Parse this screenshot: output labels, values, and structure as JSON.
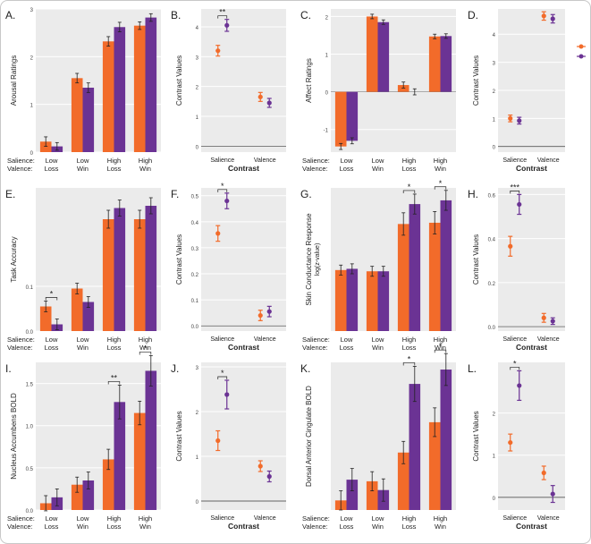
{
  "figure": {
    "orange": "#F26B2A",
    "purple": "#6B3394",
    "panel_bg": "#EBEBEB",
    "grid": "#FFFFFF",
    "common_labels": {
      "salience_label": "Salience:",
      "valence_label": "Valence:",
      "contrast_xlabel": "Contrast"
    }
  },
  "chart_data": [
    {
      "id": "A",
      "label": "A.",
      "type": "bar",
      "ylabel": "Arousal Ratings",
      "ylim": [
        0,
        3
      ],
      "yticks": [
        0,
        1,
        2,
        3
      ],
      "categories": [
        [
          "Low",
          "Loss"
        ],
        [
          "Low",
          "Win"
        ],
        [
          "High",
          "Loss"
        ],
        [
          "High",
          "Win"
        ]
      ],
      "series": [
        {
          "name": "orange",
          "values": [
            0.22,
            1.55,
            2.32,
            2.65
          ],
          "errors": [
            0.1,
            0.1,
            0.1,
            0.08
          ]
        },
        {
          "name": "purple",
          "values": [
            0.12,
            1.35,
            2.62,
            2.82
          ],
          "errors": [
            0.08,
            0.1,
            0.1,
            0.08
          ]
        }
      ],
      "sig": []
    },
    {
      "id": "B",
      "label": "B.",
      "type": "scatter",
      "ylabel": "Contrast Values",
      "xlabel": "Contrast",
      "ylim": [
        -0.2,
        4.6
      ],
      "yticks": [
        0,
        1,
        2,
        3,
        4
      ],
      "categories": [
        "Salience",
        "Valence"
      ],
      "series": [
        {
          "name": "orange",
          "values": [
            3.2,
            1.65
          ],
          "errors": [
            0.18,
            0.15
          ]
        },
        {
          "name": "purple",
          "values": [
            4.05,
            1.45
          ],
          "errors": [
            0.2,
            0.15
          ]
        }
      ],
      "sig": [
        {
          "group": 0,
          "text": "**"
        }
      ]
    },
    {
      "id": "C",
      "label": "C.",
      "type": "bar",
      "ylabel": "Affect Ratings",
      "ylim": [
        -1.6,
        2.2
      ],
      "yticks": [
        -1,
        0,
        1,
        2
      ],
      "categories": [
        [
          "Low",
          "Loss"
        ],
        [
          "Low",
          "Win"
        ],
        [
          "High",
          "Loss"
        ],
        [
          "High",
          "Win"
        ]
      ],
      "series": [
        {
          "name": "orange",
          "values": [
            -1.45,
            2.0,
            0.18,
            1.47
          ],
          "errors": [
            0.08,
            0.06,
            0.08,
            0.06
          ]
        },
        {
          "name": "purple",
          "values": [
            -1.3,
            1.85,
            0.0,
            1.48
          ],
          "errors": [
            0.08,
            0.06,
            0.08,
            0.06
          ]
        }
      ],
      "sig": []
    },
    {
      "id": "D",
      "label": "D.",
      "type": "scatter",
      "ylabel": "Contrast Values",
      "xlabel": "Contrast",
      "ylim": [
        -0.2,
        4.9
      ],
      "yticks": [
        0,
        1,
        2,
        3,
        4
      ],
      "categories": [
        "Salience",
        "Valence"
      ],
      "series": [
        {
          "name": "orange",
          "values": [
            1.0,
            4.65
          ],
          "errors": [
            0.12,
            0.15
          ]
        },
        {
          "name": "purple",
          "values": [
            0.92,
            4.55
          ],
          "errors": [
            0.12,
            0.15
          ]
        }
      ],
      "sig": []
    },
    {
      "id": "E",
      "label": "E.",
      "type": "bar",
      "ylabel": "Task Accuracy",
      "ylim": [
        0,
        0.32
      ],
      "yticks": [
        0,
        0.1
      ],
      "ytickLabels": [
        "0.0",
        "0.1"
      ],
      "categories": [
        [
          "Low",
          "Loss"
        ],
        [
          "Low",
          "Win"
        ],
        [
          "High",
          "Loss"
        ],
        [
          "High",
          "Win"
        ]
      ],
      "series": [
        {
          "name": "orange",
          "values": [
            0.055,
            0.095,
            0.25,
            0.25
          ],
          "errors": [
            0.012,
            0.012,
            0.02,
            0.02
          ]
        },
        {
          "name": "purple",
          "values": [
            0.015,
            0.065,
            0.275,
            0.28
          ],
          "errors": [
            0.012,
            0.012,
            0.018,
            0.018
          ]
        }
      ],
      "sig": [
        {
          "group": 0,
          "text": "*"
        }
      ]
    },
    {
      "id": "F",
      "label": "F.",
      "type": "scatter",
      "ylabel": "Contrast Values",
      "xlabel": "Contrast",
      "ylim": [
        -0.02,
        0.53
      ],
      "yticks": [
        0,
        0.1,
        0.2,
        0.3,
        0.4,
        0.5
      ],
      "ytickLabels": [
        "0.0",
        "0.1",
        "0.2",
        "0.3",
        "0.4",
        "0.5"
      ],
      "categories": [
        "Salience",
        "Valence"
      ],
      "series": [
        {
          "name": "orange",
          "values": [
            0.355,
            0.04
          ],
          "errors": [
            0.03,
            0.02
          ]
        },
        {
          "name": "purple",
          "values": [
            0.48,
            0.055
          ],
          "errors": [
            0.03,
            0.02
          ]
        }
      ],
      "sig": [
        {
          "group": 0,
          "text": "*"
        }
      ]
    },
    {
      "id": "G",
      "label": "G.",
      "type": "bar",
      "ylabel": "Skin Conductance Response",
      "ylabel2": "log(z-value)",
      "ylim": [
        0,
        1.15
      ],
      "yticks": [],
      "categories": [
        [
          "Low",
          "Loss"
        ],
        [
          "Low",
          "Win"
        ],
        [
          "High",
          "Loss"
        ],
        [
          "High",
          "Win"
        ]
      ],
      "series": [
        {
          "name": "orange",
          "values": [
            0.49,
            0.48,
            0.86,
            0.87
          ],
          "errors": [
            0.04,
            0.04,
            0.09,
            0.09
          ]
        },
        {
          "name": "purple",
          "values": [
            0.5,
            0.48,
            1.02,
            1.05
          ],
          "errors": [
            0.04,
            0.04,
            0.08,
            0.08
          ]
        }
      ],
      "sig": [
        {
          "group": 2,
          "text": "*"
        },
        {
          "group": 3,
          "text": "*"
        }
      ]
    },
    {
      "id": "H",
      "label": "H.",
      "type": "scatter",
      "ylabel": "Contrast Values",
      "xlabel": "Contrast",
      "ylim": [
        -0.02,
        0.63
      ],
      "yticks": [
        0,
        0.2,
        0.4,
        0.6
      ],
      "ytickLabels": [
        "0.0",
        "0.2",
        "0.4",
        "0.6"
      ],
      "categories": [
        "Salience",
        "Valence"
      ],
      "series": [
        {
          "name": "orange",
          "values": [
            0.365,
            0.04
          ],
          "errors": [
            0.045,
            0.02
          ]
        },
        {
          "name": "purple",
          "values": [
            0.555,
            0.025
          ],
          "errors": [
            0.045,
            0.015
          ]
        }
      ],
      "sig": [
        {
          "group": 0,
          "text": "***"
        }
      ]
    },
    {
      "id": "I",
      "label": "I.",
      "type": "bar",
      "ylabel": "Nucleus Accumbens BOLD",
      "ylim": [
        0,
        1.75
      ],
      "yticks": [
        0,
        0.5,
        1.0,
        1.5
      ],
      "ytickLabels": [
        "0.0",
        "0.5",
        "1.0",
        "1.5"
      ],
      "categories": [
        [
          "Low",
          "Loss"
        ],
        [
          "Low",
          "Win"
        ],
        [
          "High",
          "Loss"
        ],
        [
          "High",
          "Win"
        ]
      ],
      "series": [
        {
          "name": "orange",
          "values": [
            0.08,
            0.3,
            0.6,
            1.15
          ],
          "errors": [
            0.09,
            0.09,
            0.12,
            0.14
          ]
        },
        {
          "name": "purple",
          "values": [
            0.15,
            0.35,
            1.28,
            1.65
          ],
          "errors": [
            0.1,
            0.1,
            0.2,
            0.18
          ]
        }
      ],
      "sig": [
        {
          "group": 2,
          "text": "**"
        },
        {
          "group": 3,
          "text": "*"
        }
      ]
    },
    {
      "id": "J",
      "label": "J.",
      "type": "scatter",
      "ylabel": "Contrast Values",
      "xlabel": "Contrast",
      "ylim": [
        -0.2,
        3.1
      ],
      "yticks": [
        0,
        1,
        2,
        3
      ],
      "categories": [
        "Salience",
        "Valence"
      ],
      "series": [
        {
          "name": "orange",
          "values": [
            1.35,
            0.78
          ],
          "errors": [
            0.22,
            0.12
          ]
        },
        {
          "name": "purple",
          "values": [
            2.38,
            0.55
          ],
          "errors": [
            0.32,
            0.12
          ]
        }
      ],
      "sig": [
        {
          "group": 0,
          "text": "*"
        }
      ]
    },
    {
      "id": "K",
      "label": "K.",
      "type": "bar",
      "ylabel": "Dorsal Anterior Cingulate BOLD",
      "ylim": [
        0,
        1.85
      ],
      "yticks": [],
      "categories": [
        [
          "Low",
          "Loss"
        ],
        [
          "Low",
          "Win"
        ],
        [
          "High",
          "Loss"
        ],
        [
          "High",
          "Win"
        ]
      ],
      "series": [
        {
          "name": "orange",
          "values": [
            0.12,
            0.36,
            0.72,
            1.1
          ],
          "errors": [
            0.12,
            0.12,
            0.14,
            0.18
          ]
        },
        {
          "name": "purple",
          "values": [
            0.38,
            0.25,
            1.58,
            1.76
          ],
          "errors": [
            0.14,
            0.14,
            0.22,
            0.2
          ]
        }
      ],
      "sig": [
        {
          "group": 2,
          "text": "*"
        },
        {
          "group": 3,
          "text": "*"
        }
      ]
    },
    {
      "id": "L",
      "label": "L.",
      "type": "scatter",
      "ylabel": "Contrast Values",
      "xlabel": "Contrast",
      "ylim": [
        -0.3,
        3.2
      ],
      "yticks": [
        0,
        1,
        2
      ],
      "categories": [
        "Salience",
        "Valence"
      ],
      "series": [
        {
          "name": "orange",
          "values": [
            1.3,
            0.58
          ],
          "errors": [
            0.2,
            0.16
          ]
        },
        {
          "name": "purple",
          "values": [
            2.65,
            0.08
          ],
          "errors": [
            0.35,
            0.2
          ]
        }
      ],
      "sig": [
        {
          "group": 0,
          "text": "*"
        }
      ]
    }
  ]
}
